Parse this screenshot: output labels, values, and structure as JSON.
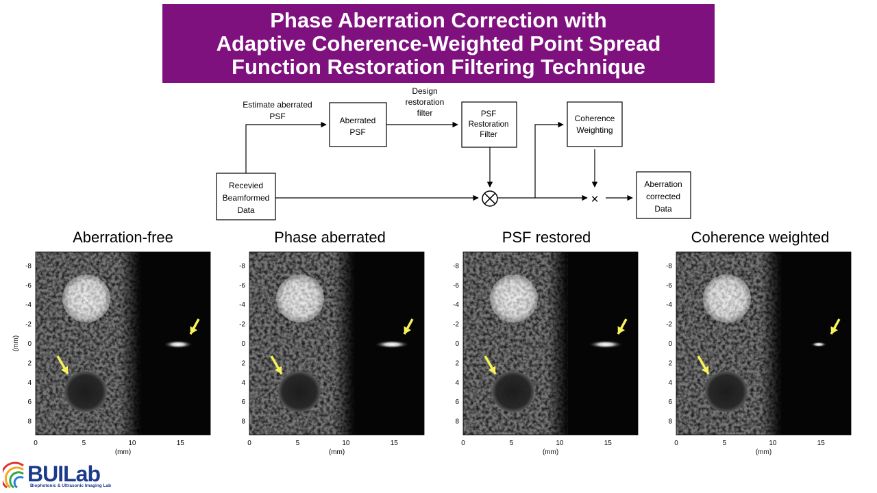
{
  "title": {
    "line1": "Phase Aberration Correction with",
    "line2": "Adaptive Coherence-Weighted Point Spread",
    "line3": "Function Restoration Filtering Technique"
  },
  "flow": {
    "received": [
      "Recevied",
      "Beamformed",
      "Data"
    ],
    "estimate_label": [
      "Estimate aberrated",
      "PSF"
    ],
    "aberrated_psf": [
      "Aberrated",
      "PSF"
    ],
    "design_label": [
      "Design",
      "restoration",
      "filter"
    ],
    "psf_filter": [
      "PSF",
      "Restoration",
      "Filter"
    ],
    "coherence": [
      "Coherence",
      "Weighting"
    ],
    "output": [
      "Aberration",
      "corrected",
      "Data"
    ],
    "conv_symbol": "⊗",
    "mult_symbol": "×"
  },
  "panels": [
    {
      "title": "Aberration-free"
    },
    {
      "title": "Phase aberrated"
    },
    {
      "title": "PSF restored"
    },
    {
      "title": "Coherence weighted"
    }
  ],
  "axes": {
    "y_label": "(mm)",
    "x_label": "(mm)",
    "y_ticks": [
      "-8",
      "-6",
      "-4",
      "-2",
      "0",
      "2",
      "4",
      "6",
      "8"
    ],
    "x_ticks": [
      "0",
      "5",
      "10",
      "15"
    ]
  },
  "colors": {
    "banner": "#7f117f",
    "arrow": "#f6f25a"
  },
  "logo": {
    "name": "BUILab",
    "tagline": "Biophotonic & Ultrasonic Imaging Lab"
  }
}
